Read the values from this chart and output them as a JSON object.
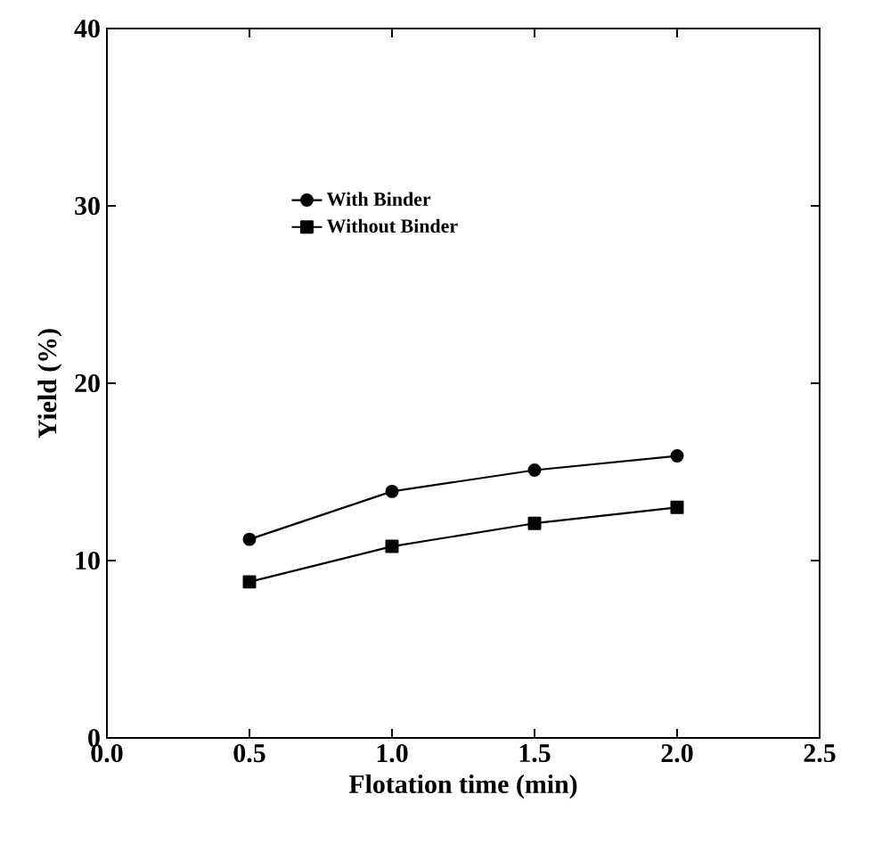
{
  "chart_data": {
    "type": "line",
    "xlabel": "Flotation time (min)",
    "ylabel": "Yield (%)",
    "x": [
      0.5,
      1.0,
      1.5,
      2.0
    ],
    "series": [
      {
        "name": "With Binder",
        "color": "#000000",
        "marker": "circle",
        "values": [
          11.2,
          13.9,
          15.1,
          15.9
        ]
      },
      {
        "name": "Without Binder",
        "color": "#000000",
        "marker": "square",
        "values": [
          8.8,
          10.8,
          12.1,
          13.0
        ]
      }
    ],
    "xlim": [
      0.0,
      2.5
    ],
    "xticks": [
      {
        "value": 0.0,
        "label": "0.0"
      },
      0.5,
      {
        "value": 1.0,
        "label": "1.0"
      },
      1.5,
      {
        "value": 2.0,
        "label": "2.0"
      },
      2.5
    ],
    "ylim": [
      0,
      40
    ],
    "yticks": [
      0,
      10,
      20,
      30,
      40
    ],
    "grid": false,
    "legend": "top",
    "line_style": "solid"
  }
}
